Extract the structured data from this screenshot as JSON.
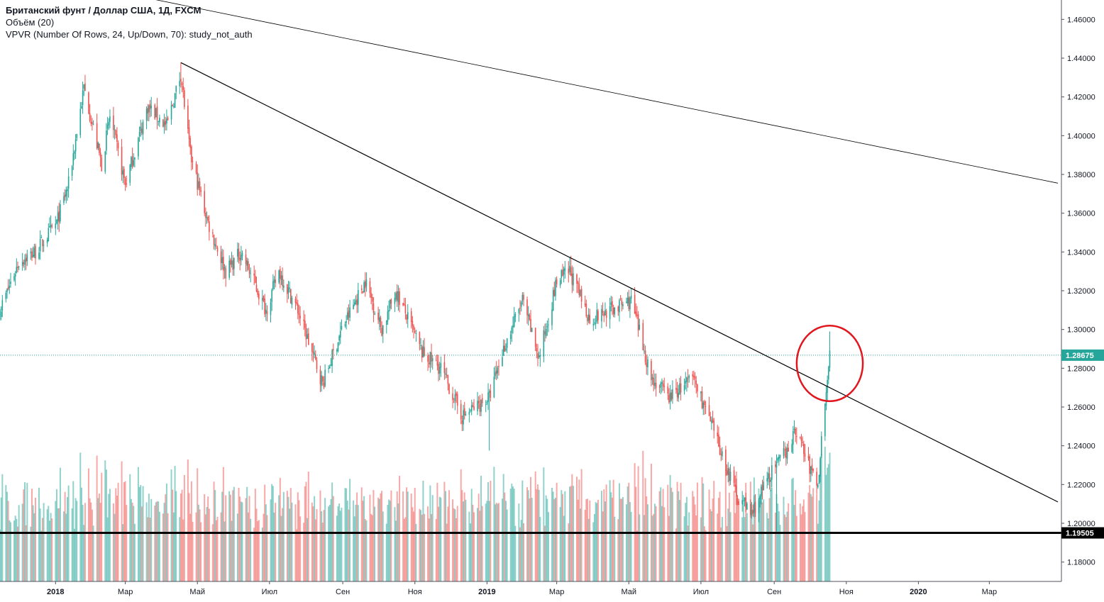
{
  "legend": {
    "title": "Британский фунт / Доллар США, 1Д, FXCM",
    "volume": "Объём (20)",
    "vpvr": "VPVR (Number Of Rows, 24, Up/Down, 70): study_not_auth"
  },
  "colors": {
    "up": "#26a69a",
    "down": "#ef5350",
    "vol_up": "#26a69a",
    "vol_down": "#ef5350",
    "price_line": "#26a69a",
    "support": "#000000",
    "circle": "#e0171e",
    "trend": "#000000",
    "axis_text": "#131722"
  },
  "chart_data": {
    "type": "candlestick",
    "symbol": "Британский фунт / Доллар США",
    "timeframe": "1Д",
    "exchange": "FXCM",
    "ylim": [
      1.17,
      1.47
    ],
    "y_ticks": [
      "1.46000",
      "1.44000",
      "1.42000",
      "1.40000",
      "1.38000",
      "1.36000",
      "1.34000",
      "1.32000",
      "1.30000",
      "1.28000",
      "1.26000",
      "1.24000",
      "1.22000",
      "1.20000",
      "1.18000"
    ],
    "x_labels": [
      {
        "label": "2018",
        "major": true,
        "date": "2018-01-01"
      },
      {
        "label": "Мар",
        "major": false,
        "date": "2018-03-01"
      },
      {
        "label": "Май",
        "major": false,
        "date": "2018-05-01"
      },
      {
        "label": "Июл",
        "major": false,
        "date": "2018-07-01"
      },
      {
        "label": "Сен",
        "major": false,
        "date": "2018-09-01"
      },
      {
        "label": "Ноя",
        "major": false,
        "date": "2018-11-01"
      },
      {
        "label": "2019",
        "major": true,
        "date": "2019-01-01"
      },
      {
        "label": "Мар",
        "major": false,
        "date": "2019-03-01"
      },
      {
        "label": "Май",
        "major": false,
        "date": "2019-05-01"
      },
      {
        "label": "Июл",
        "major": false,
        "date": "2019-07-01"
      },
      {
        "label": "Сен",
        "major": false,
        "date": "2019-09-01"
      },
      {
        "label": "Ноя",
        "major": false,
        "date": "2019-11-01"
      },
      {
        "label": "2020",
        "major": true,
        "date": "2020-01-01"
      },
      {
        "label": "Мар",
        "major": false,
        "date": "2020-03-01"
      }
    ],
    "x_start": "2017-11-15",
    "x_end": "2020-05-01",
    "last_date": "2019-10-18",
    "price_path": [
      [
        "2017-11-15",
        1.31
      ],
      [
        "2017-12-01",
        1.335
      ],
      [
        "2017-12-15",
        1.34
      ],
      [
        "2018-01-02",
        1.355
      ],
      [
        "2018-01-12",
        1.375
      ],
      [
        "2018-01-25",
        1.425
      ],
      [
        "2018-02-09",
        1.385
      ],
      [
        "2018-02-16",
        1.41
      ],
      [
        "2018-03-01",
        1.375
      ],
      [
        "2018-03-20",
        1.415
      ],
      [
        "2018-04-05",
        1.405
      ],
      [
        "2018-04-17",
        1.432
      ],
      [
        "2018-04-25",
        1.39
      ],
      [
        "2018-05-10",
        1.355
      ],
      [
        "2018-05-25",
        1.33
      ],
      [
        "2018-06-07",
        1.34
      ],
      [
        "2018-06-28",
        1.31
      ],
      [
        "2018-07-09",
        1.33
      ],
      [
        "2018-07-25",
        1.31
      ],
      [
        "2018-08-15",
        1.272
      ],
      [
        "2018-08-31",
        1.3
      ],
      [
        "2018-09-20",
        1.325
      ],
      [
        "2018-10-04",
        1.3
      ],
      [
        "2018-10-16",
        1.32
      ],
      [
        "2018-11-07",
        1.288
      ],
      [
        "2018-11-23",
        1.28
      ],
      [
        "2018-12-11",
        1.255
      ],
      [
        "2019-01-03",
        1.265
      ],
      [
        "2019-01-15",
        1.29
      ],
      [
        "2019-01-31",
        1.315
      ],
      [
        "2019-02-14",
        1.285
      ],
      [
        "2019-03-01",
        1.325
      ],
      [
        "2019-03-12",
        1.33
      ],
      [
        "2019-03-29",
        1.305
      ],
      [
        "2019-04-15",
        1.31
      ],
      [
        "2019-05-03",
        1.315
      ],
      [
        "2019-05-20",
        1.275
      ],
      [
        "2019-06-04",
        1.265
      ],
      [
        "2019-06-25",
        1.275
      ],
      [
        "2019-07-10",
        1.25
      ],
      [
        "2019-07-31",
        1.215
      ],
      [
        "2019-08-13",
        1.205
      ],
      [
        "2019-08-28",
        1.225
      ],
      [
        "2019-09-06",
        1.232
      ],
      [
        "2019-09-20",
        1.248
      ],
      [
        "2019-09-30",
        1.23
      ],
      [
        "2019-10-08",
        1.22
      ],
      [
        "2019-10-14",
        1.265
      ],
      [
        "2019-10-18",
        1.287
      ]
    ],
    "extremes": {
      "high_2018": {
        "date": "2018-04-17",
        "value": 1.4377
      },
      "low_2018_12": {
        "date": "2018-12-12",
        "value": 1.2477
      },
      "low_2019_01_spike": {
        "date": "2019-01-03",
        "value": 1.2375
      },
      "high_2019_03": {
        "date": "2019-03-13",
        "value": 1.338
      },
      "low_2019_09": {
        "date": "2019-09-03",
        "value": 1.1958
      },
      "high_2019_10": {
        "date": "2019-10-18",
        "value": 1.299
      }
    },
    "volume_range": [
      0,
      125
    ],
    "last_price": "1.28675",
    "support_level": "1.19505",
    "trendlines": [
      {
        "from": {
          "date": "2018-04-17",
          "value": 1.4377
        },
        "to": {
          "date": "2020-04-28",
          "value": 1.211
        }
      },
      {
        "from": {
          "date": "2018-03-20",
          "value": 1.471
        },
        "to": {
          "date": "2020-04-28",
          "value": 1.3755
        }
      }
    ],
    "annotation": {
      "shape": "ellipse",
      "center": {
        "date": "2019-10-18",
        "value": 1.2825
      },
      "radius_days": 28,
      "radius_value": 0.0195
    }
  }
}
